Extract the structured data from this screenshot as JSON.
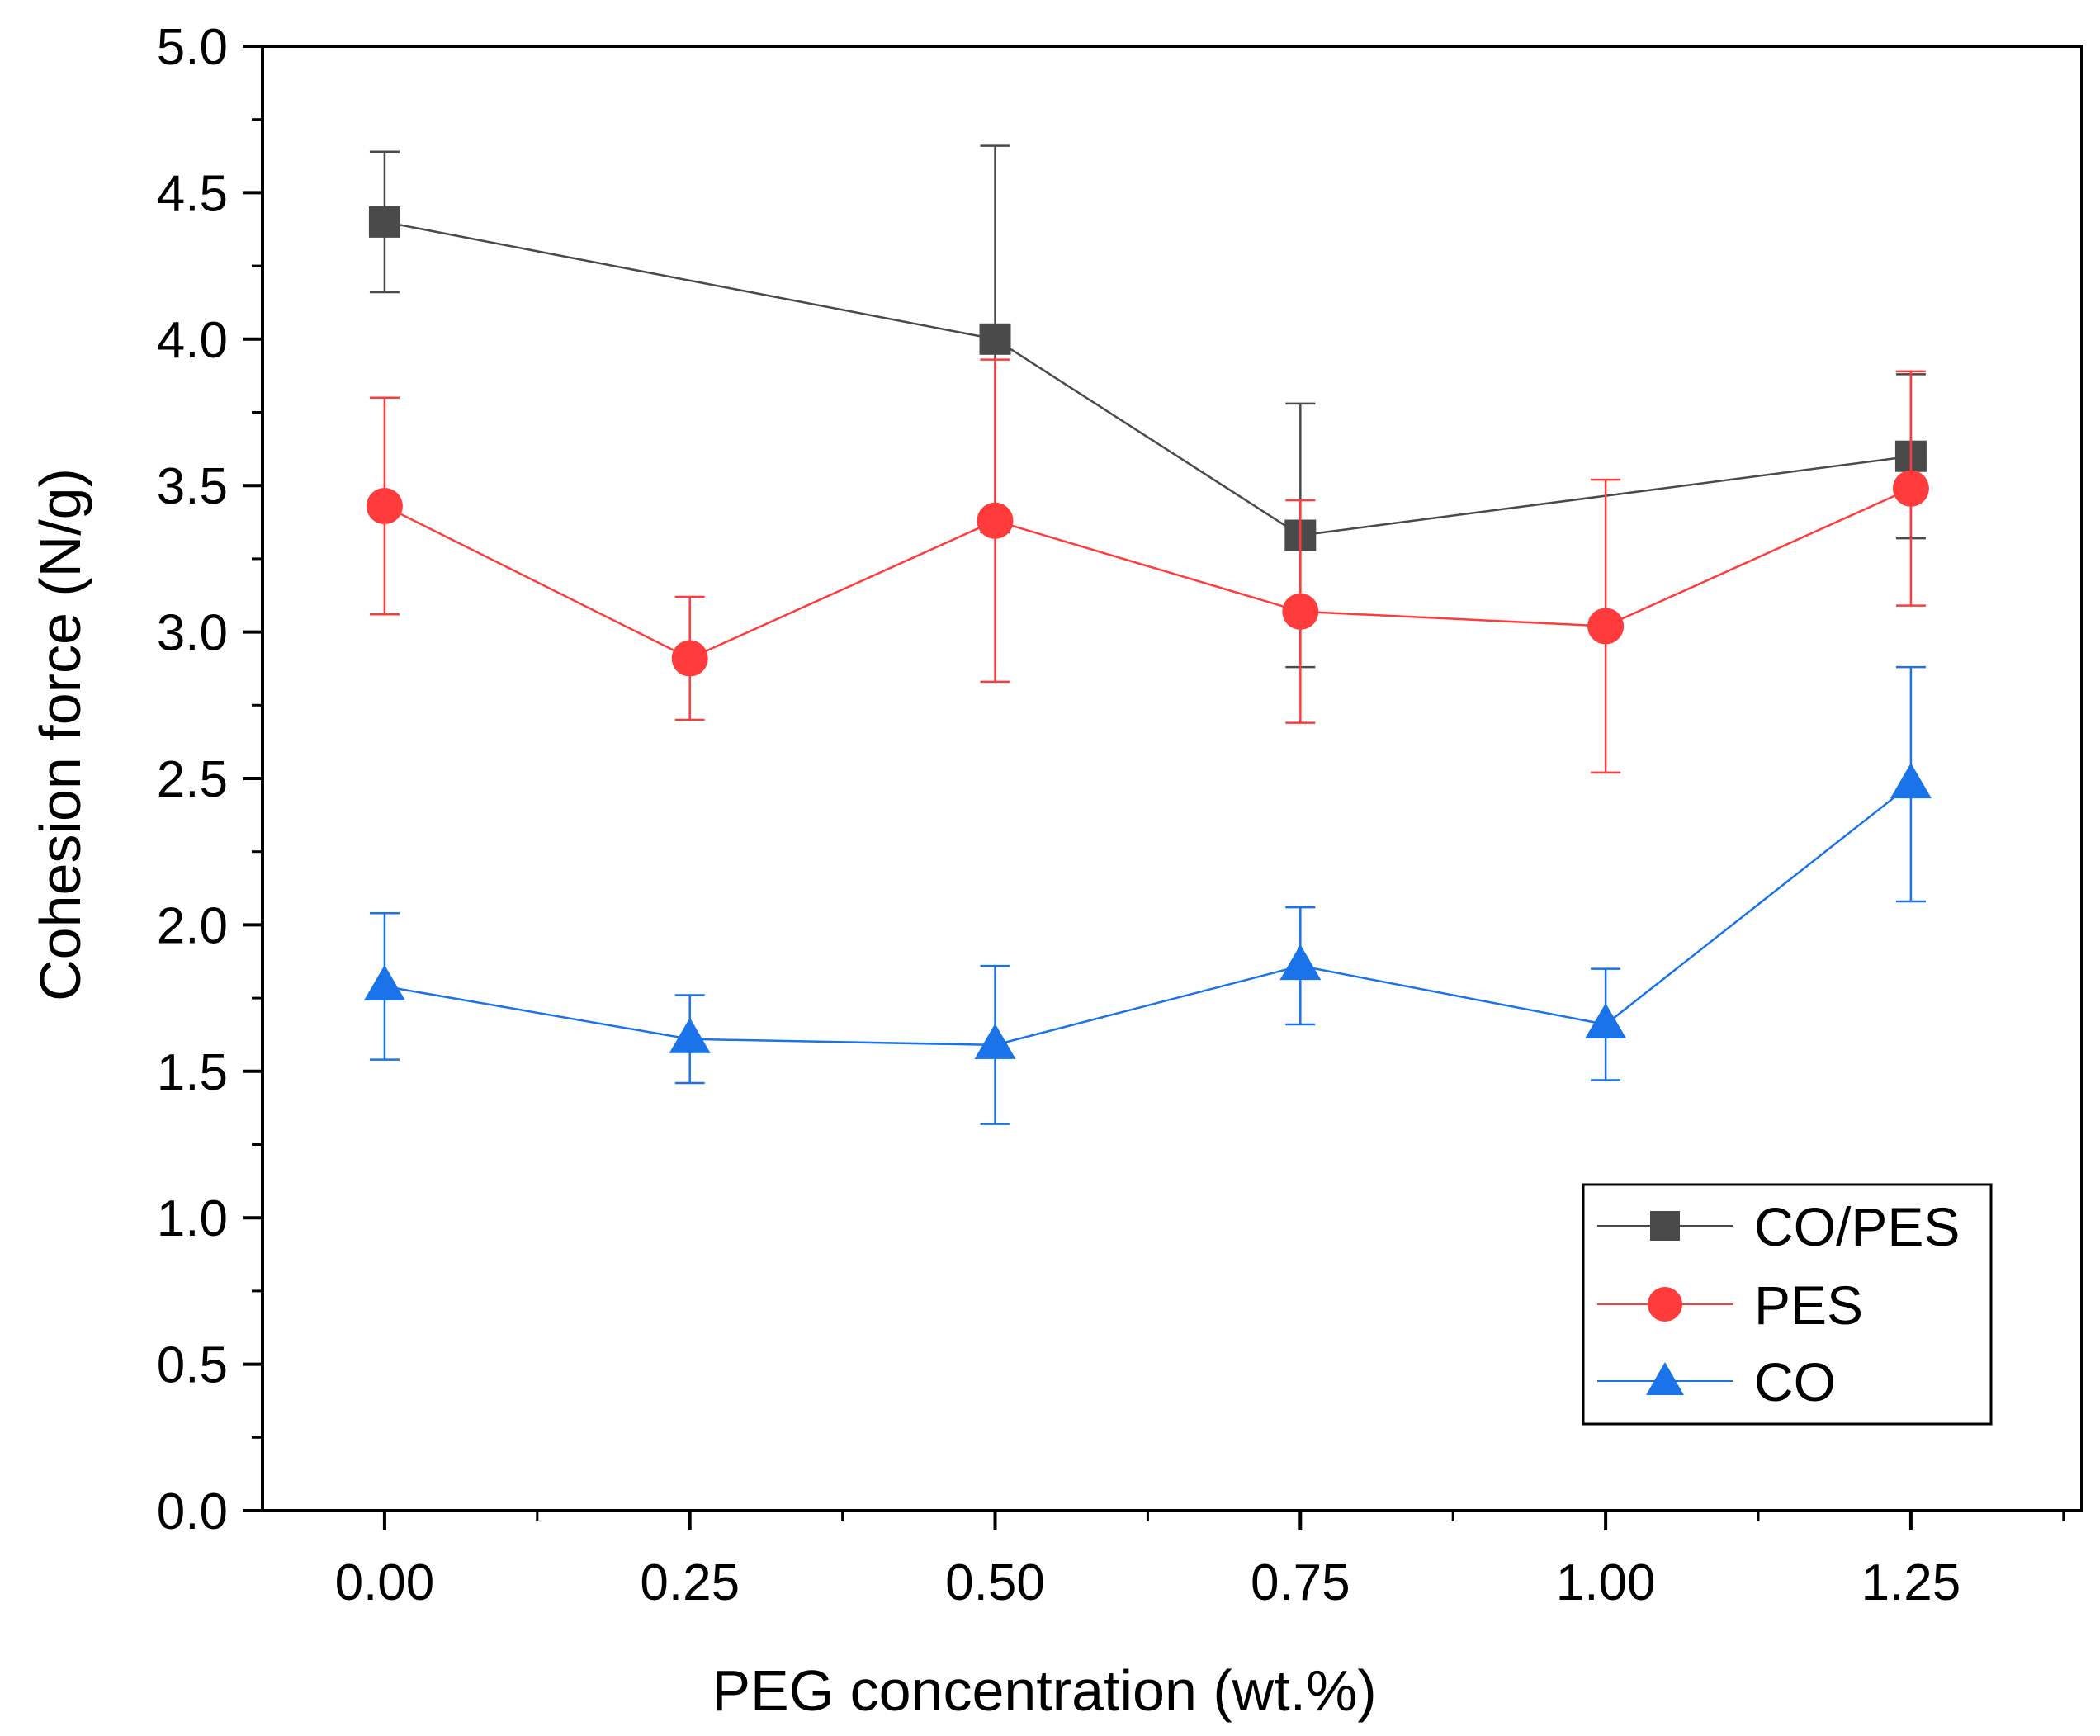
{
  "chart_data": {
    "type": "line",
    "title": "",
    "xlabel": "PEG concentration (wt.%)",
    "ylabel": "Cohesion force (N/g)",
    "x": [
      0.0,
      0.25,
      0.5,
      0.75,
      1.0,
      1.25
    ],
    "x_tick_labels": [
      "0.00",
      "0.25",
      "0.50",
      "0.75",
      "1.00",
      "1.25"
    ],
    "y_tick_labels": [
      "0.0",
      "0.5",
      "1.0",
      "1.5",
      "2.0",
      "2.5",
      "3.0",
      "3.5",
      "4.0",
      "4.5",
      "5.0"
    ],
    "xlim": [
      -0.1,
      1.39
    ],
    "ylim": [
      0.0,
      5.0
    ],
    "grid": false,
    "legend_position": "bottom-right",
    "series": [
      {
        "name": "CO/PES",
        "marker": "square",
        "color": "#4a4a4a",
        "x": [
          0.0,
          0.5,
          0.75,
          1.25
        ],
        "values": [
          4.4,
          4.0,
          3.33,
          3.6
        ],
        "errors": [
          0.24,
          0.66,
          0.45,
          0.28
        ]
      },
      {
        "name": "PES",
        "marker": "circle",
        "color": "#ff3b3b",
        "x": [
          0.0,
          0.25,
          0.5,
          0.75,
          1.0,
          1.25
        ],
        "values": [
          3.43,
          2.91,
          3.38,
          3.07,
          3.02,
          3.49
        ],
        "errors": [
          0.37,
          0.21,
          0.55,
          0.38,
          0.5,
          0.4
        ]
      },
      {
        "name": "CO",
        "marker": "triangle",
        "color": "#1a73e8",
        "x": [
          0.0,
          0.25,
          0.5,
          0.75,
          1.0,
          1.25
        ],
        "values": [
          1.79,
          1.61,
          1.59,
          1.86,
          1.66,
          2.48
        ],
        "errors": [
          0.25,
          0.15,
          0.27,
          0.2,
          0.19,
          0.4
        ]
      }
    ]
  }
}
